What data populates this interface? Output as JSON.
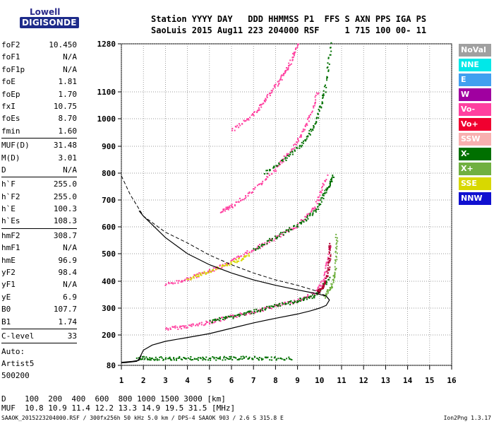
{
  "logo": {
    "lowell": "Lowell",
    "digisonde": "DIGISONDE"
  },
  "header": {
    "line1": "Station YYYY DAY   DDD HHMMSS P1  FFS S AXN PPS IGA PS",
    "line2": "SaoLuis 2015 Aug11 223 204000 RSF     1 715 100 00- 11"
  },
  "params": [
    {
      "name": "foF2",
      "value": "10.450"
    },
    {
      "name": "foF1",
      "value": "N/A"
    },
    {
      "name": "foF1p",
      "value": "N/A"
    },
    {
      "name": "foE",
      "value": "1.81"
    },
    {
      "name": "foEp",
      "value": "1.70"
    },
    {
      "name": "fxI",
      "value": "10.75"
    },
    {
      "name": "foEs",
      "value": "8.70"
    },
    {
      "name": "fmin",
      "value": "1.60"
    },
    {
      "sep": true
    },
    {
      "name": "MUF(D)",
      "value": "31.48"
    },
    {
      "name": "M(D)",
      "value": "3.01"
    },
    {
      "name": "D",
      "value": "N/A"
    },
    {
      "sep": true
    },
    {
      "name": "h`F",
      "value": "255.0"
    },
    {
      "name": "h`F2",
      "value": "255.0"
    },
    {
      "name": "h`E",
      "value": "100.3"
    },
    {
      "name": "h`Es",
      "value": "108.3"
    },
    {
      "sep": true
    },
    {
      "name": "hmF2",
      "value": "308.7"
    },
    {
      "name": "hmF1",
      "value": "N/A"
    },
    {
      "name": "hmE",
      "value": "96.9"
    },
    {
      "name": "yF2",
      "value": "98.4"
    },
    {
      "name": "yF1",
      "value": "N/A"
    },
    {
      "name": "yE",
      "value": "6.9"
    },
    {
      "name": "B0",
      "value": "107.7"
    },
    {
      "name": "B1",
      "value": "1.74"
    },
    {
      "sep": true
    },
    {
      "name": "C-level",
      "value": "33"
    },
    {
      "sep": true
    }
  ],
  "auto": {
    "label": "Auto:",
    "artist": "Artist5",
    "version": "500200"
  },
  "legend": [
    {
      "label": "NoVal",
      "color": "#a0a0a0"
    },
    {
      "label": "NNE",
      "color": "#00e8e8"
    },
    {
      "label": "E",
      "color": "#40a0f0"
    },
    {
      "label": "W",
      "color": "#a000a0"
    },
    {
      "label": "Vo-",
      "color": "#ff40a0"
    },
    {
      "label": "Vo+",
      "color": "#f00030"
    },
    {
      "label": "SSW",
      "color": "#f8b0b0"
    },
    {
      "label": "X-",
      "color": "#007000"
    },
    {
      "label": "X+",
      "color": "#70b040"
    },
    {
      "label": "SSE",
      "color": "#d8d800"
    },
    {
      "label": "NNW",
      "color": "#1010d0"
    }
  ],
  "bottom": {
    "d_line": "D    100  200  400  600  800 1000 1500 3000 [km]",
    "muf_line": "MUF  10.8 10.9 11.4 12.2 13.3 14.9 19.5 31.5 [MHz]"
  },
  "footer": {
    "info": "SAAOK_2015223204000.RSF / 300fx256h 50 kHz 5.0 km / DPS-4 SAAOK 903 / 2.6 S 315.8 E",
    "version": "Ion2Png 1.3.17"
  },
  "chart_data": {
    "type": "scatter",
    "x_ticks": [
      "1",
      "2",
      "3",
      "4",
      "5",
      "6",
      "7",
      "8",
      "9",
      "10",
      "11",
      "12",
      "13",
      "14",
      "15",
      "16"
    ],
    "y_ticks": [
      "80",
      "200",
      "300",
      "400",
      "500",
      "600",
      "700",
      "800",
      "900",
      "1000",
      "1100",
      "1280"
    ],
    "xlim": [
      1,
      16
    ],
    "ylim": [
      80,
      1280
    ],
    "grid": true,
    "series": [
      {
        "mode": "O",
        "color": "#ff40a0",
        "traces": [
          {
            "x": [
              3.0,
              4.0,
              5.0,
              6.0,
              7.0,
              8.0,
              9.0,
              9.8,
              10.2,
              10.45
            ],
            "y": [
              225,
              235,
              250,
              270,
              290,
              310,
              330,
              360,
              410,
              530
            ]
          },
          {
            "x": [
              3.0,
              4.0,
              5.0,
              6.0,
              7.0,
              8.0,
              9.0,
              9.8,
              10.3
            ],
            "y": [
              390,
              410,
              440,
              475,
              520,
              560,
              610,
              680,
              790
            ]
          },
          {
            "x": [
              5.5,
              6.0,
              7.0,
              8.0,
              8.8,
              9.4,
              9.9
            ],
            "y": [
              660,
              680,
              740,
              820,
              900,
              980,
              1100
            ]
          },
          {
            "x": [
              6.0,
              7.0,
              7.6,
              8.2,
              8.6,
              9.0
            ],
            "y": [
              960,
              1020,
              1080,
              1150,
              1200,
              1280
            ]
          }
        ]
      },
      {
        "mode": "X",
        "color": "#007000",
        "traces": [
          {
            "x": [
              5.0,
              6.0,
              7.0,
              8.0,
              9.0,
              9.8,
              10.4
            ],
            "y": [
              255,
              270,
              290,
              310,
              330,
              350,
              410
            ]
          },
          {
            "x": [
              7.0,
              8.0,
              9.0,
              9.8,
              10.3,
              10.6
            ],
            "y": [
              520,
              565,
              610,
              660,
              740,
              790
            ]
          },
          {
            "x": [
              7.5,
              8.5,
              9.3,
              9.8,
              10.2,
              10.5
            ],
            "y": [
              800,
              860,
              920,
              990,
              1100,
              1280
            ]
          }
        ]
      },
      {
        "mode": "Es",
        "color": "#007000",
        "traces": [
          {
            "x": [
              1.7,
              2.5,
              3.5,
              4.5,
              5.5,
              6.5,
              7.5,
              8.7
            ],
            "y": [
              110,
              110,
              110,
              110,
              110,
              112,
              110,
              110
            ]
          }
        ]
      },
      {
        "mode": "Vo+",
        "color": "#b00030",
        "traces": [
          {
            "x": [
              9.9,
              10.2,
              10.4,
              10.45
            ],
            "y": [
              360,
              390,
              450,
              540
            ]
          }
        ]
      },
      {
        "mode": "X+",
        "color": "#70b040",
        "traces": [
          {
            "x": [
              10.2,
              10.5,
              10.7,
              10.75
            ],
            "y": [
              345,
              380,
              440,
              570
            ]
          }
        ]
      },
      {
        "mode": "SSE",
        "color": "#d8d800",
        "traces": [
          {
            "x": [
              4.0,
              5.0,
              6.0,
              6.8
            ],
            "y": [
              410,
              440,
              470,
              500
            ]
          }
        ]
      }
    ],
    "profile": {
      "x": [
        1.0,
        1.2,
        1.5,
        1.7,
        1.8,
        2.0,
        2.4,
        3.0,
        4.0,
        5.0,
        6.0,
        7.0,
        8.0,
        9.0,
        9.6,
        10.0,
        10.3,
        10.45,
        10.3,
        9.8,
        9.0,
        8.0,
        7.0,
        6.0,
        5.0,
        4.0,
        3.0,
        2.0,
        1.8
      ],
      "y": [
        90,
        91,
        94,
        96,
        105,
        140,
        160,
        175,
        190,
        205,
        225,
        245,
        262,
        278,
        290,
        300,
        310,
        330,
        345,
        355,
        368,
        385,
        405,
        430,
        460,
        500,
        560,
        640,
        660
      ]
    },
    "es_profile": {
      "x": [
        1.0,
        1.5,
        1.8,
        1.9
      ],
      "y": [
        92,
        96,
        100,
        120
      ]
    },
    "topside": {
      "x": [
        1.0,
        1.4,
        2.0,
        3.0,
        4.0,
        5.0,
        6.0,
        7.0,
        8.0,
        9.0,
        9.8,
        10.3,
        10.45
      ],
      "y": [
        790,
        720,
        640,
        580,
        540,
        495,
        460,
        430,
        405,
        385,
        365,
        345,
        330
      ]
    }
  }
}
